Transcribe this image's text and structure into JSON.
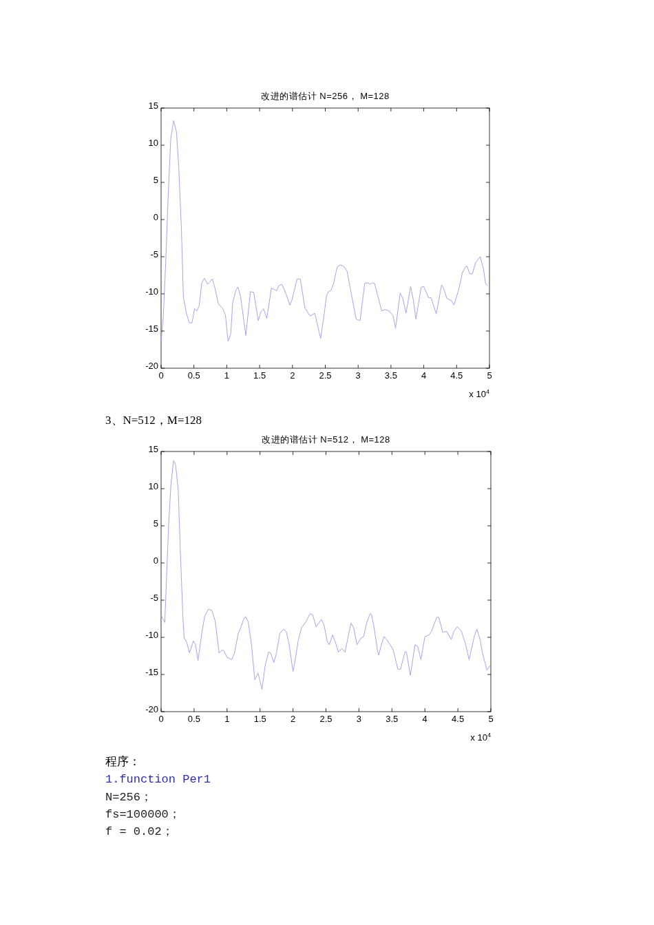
{
  "chart_data": [
    {
      "type": "line",
      "title": "改进的谱估计 N=256， M=128",
      "xlabel": "x 10$^{4}$",
      "xlim": [
        0,
        5
      ],
      "ylim": [
        -20,
        15
      ],
      "xticks": [
        0,
        0.5,
        1,
        1.5,
        2,
        2.5,
        3,
        3.5,
        4,
        4.5,
        5
      ],
      "yticks": [
        -20,
        -15,
        -10,
        -5,
        0,
        5,
        10,
        15
      ],
      "color": "#a6a6e6",
      "x": [
        0,
        0.035,
        0.07,
        0.105,
        0.147,
        0.19,
        0.234,
        0.27,
        0.31,
        0.34,
        0.385,
        0.43,
        0.47,
        0.51,
        0.545,
        0.58,
        0.62,
        0.66,
        0.71,
        0.78,
        0.82,
        0.87,
        0.94,
        0.98,
        1.02,
        1.06,
        1.09,
        1.14,
        1.17,
        1.21,
        1.29,
        1.36,
        1.41,
        1.48,
        1.52,
        1.56,
        1.61,
        1.68,
        1.76,
        1.79,
        1.84,
        1.91,
        1.96,
        1.99,
        2.07,
        2.12,
        2.19,
        2.27,
        2.34,
        2.43,
        2.48,
        2.52,
        2.55,
        2.59,
        2.63,
        2.68,
        2.73,
        2.78,
        2.83,
        2.89,
        2.97,
        3.03,
        3.1,
        3.14,
        3.18,
        3.22,
        3.25,
        3.31,
        3.36,
        3.41,
        3.47,
        3.53,
        3.57,
        3.64,
        3.68,
        3.73,
        3.8,
        3.84,
        3.88,
        3.96,
        4.0,
        4.07,
        4.11,
        4.19,
        4.27,
        4.3,
        4.35,
        4.42,
        4.46,
        4.53,
        4.59,
        4.64,
        4.66,
        4.7,
        4.74,
        4.79,
        4.86,
        4.91,
        4.94,
        4.97
      ],
      "values": [
        -16.5,
        -12.9,
        -5.8,
        2.5,
        10.9,
        13.3,
        11.8,
        6.9,
        -1.5,
        -10.5,
        -12.6,
        -13.9,
        -13.9,
        -12.0,
        -12.3,
        -11.6,
        -8.5,
        -7.9,
        -8.7,
        -8.0,
        -9.2,
        -11.3,
        -12.0,
        -12.9,
        -16.4,
        -15.4,
        -11.2,
        -9.5,
        -9.1,
        -10.3,
        -15.6,
        -9.7,
        -9.8,
        -13.6,
        -12.4,
        -12.0,
        -13.3,
        -9.2,
        -9.6,
        -8.9,
        -8.7,
        -10.2,
        -11.5,
        -10.9,
        -8.0,
        -8.0,
        -11.9,
        -13.0,
        -12.6,
        -16.0,
        -12.9,
        -10.2,
        -9.7,
        -9.5,
        -8.5,
        -6.4,
        -6.1,
        -6.3,
        -6.9,
        -9.7,
        -13.4,
        -13.6,
        -8.6,
        -8.5,
        -8.7,
        -8.5,
        -8.6,
        -10.6,
        -12.3,
        -12.1,
        -12.3,
        -12.9,
        -14.6,
        -9.9,
        -10.6,
        -12.6,
        -9.0,
        -10.8,
        -13.4,
        -9.1,
        -9.0,
        -10.5,
        -10.5,
        -12.7,
        -8.8,
        -9.2,
        -10.6,
        -10.9,
        -11.5,
        -9.5,
        -7.1,
        -6.3,
        -6.3,
        -7.3,
        -7.3,
        -5.8,
        -5.0,
        -6.7,
        -8.6,
        -8.9
      ]
    },
    {
      "type": "line",
      "title": "改进的谱估计 N=512， M=128",
      "xlabel": "x 10$^{4}$",
      "xlim": [
        0,
        5
      ],
      "ylim": [
        -20,
        15
      ],
      "xticks": [
        0,
        0.5,
        1,
        1.5,
        2,
        2.5,
        3,
        3.5,
        4,
        4.5,
        5
      ],
      "yticks": [
        -20,
        -15,
        -10,
        -5,
        0,
        5,
        10,
        15
      ],
      "color": "#a6a6e6",
      "annotations": [
        "3、N=512，M=128",
        "程序：",
        "1.function Per1",
        "N=256；",
        "fs=100000；",
        "f = 0.02；"
      ],
      "x": [
        0,
        0.056,
        0.084,
        0.115,
        0.15,
        0.19,
        0.22,
        0.26,
        0.29,
        0.33,
        0.35,
        0.39,
        0.43,
        0.49,
        0.52,
        0.56,
        0.62,
        0.66,
        0.72,
        0.77,
        0.82,
        0.88,
        0.93,
        0.95,
        1.0,
        1.07,
        1.11,
        1.17,
        1.21,
        1.25,
        1.28,
        1.32,
        1.37,
        1.42,
        1.47,
        1.53,
        1.58,
        1.63,
        1.66,
        1.71,
        1.75,
        1.8,
        1.86,
        1.9,
        1.94,
        2.0,
        2.04,
        2.08,
        2.13,
        2.19,
        2.26,
        2.3,
        2.35,
        2.43,
        2.47,
        2.52,
        2.55,
        2.6,
        2.64,
        2.69,
        2.74,
        2.79,
        2.85,
        2.88,
        2.92,
        2.97,
        3.03,
        3.07,
        3.12,
        3.17,
        3.19,
        3.23,
        3.28,
        3.3,
        3.34,
        3.38,
        3.43,
        3.48,
        3.52,
        3.59,
        3.63,
        3.7,
        3.72,
        3.78,
        3.85,
        3.89,
        3.94,
        4.0,
        4.06,
        4.1,
        4.18,
        4.21,
        4.27,
        4.33,
        4.4,
        4.44,
        4.49,
        4.55,
        4.61,
        4.67,
        4.75,
        4.79,
        4.84,
        4.87,
        4.94,
        4.99
      ],
      "values": [
        -7.0,
        -8.0,
        -1.6,
        5.2,
        10.7,
        13.8,
        13.2,
        9.8,
        2.1,
        -7.2,
        -10.1,
        -10.7,
        -12.1,
        -10.5,
        -10.9,
        -13.1,
        -9.3,
        -7.2,
        -6.2,
        -6.4,
        -7.8,
        -12.1,
        -11.7,
        -11.8,
        -12.7,
        -13.0,
        -12.2,
        -9.5,
        -8.7,
        -7.6,
        -7.2,
        -7.9,
        -10.9,
        -15.7,
        -14.8,
        -17.0,
        -13.7,
        -12.0,
        -12.1,
        -13.4,
        -12.1,
        -9.5,
        -8.9,
        -9.3,
        -10.9,
        -14.6,
        -12.7,
        -10.4,
        -8.7,
        -8.0,
        -6.8,
        -7.0,
        -8.6,
        -7.6,
        -8.3,
        -10.6,
        -11.0,
        -9.7,
        -10.6,
        -12.0,
        -11.5,
        -12.0,
        -9.3,
        -8.1,
        -8.7,
        -11.0,
        -10.1,
        -9.9,
        -8.0,
        -6.8,
        -6.9,
        -8.7,
        -11.7,
        -12.4,
        -11.0,
        -9.9,
        -10.4,
        -11.1,
        -11.7,
        -14.3,
        -14.3,
        -11.9,
        -12.0,
        -15.1,
        -11.0,
        -11.2,
        -13.0,
        -9.9,
        -9.7,
        -9.2,
        -7.3,
        -7.3,
        -9.3,
        -9.2,
        -10.3,
        -9.2,
        -8.6,
        -9.1,
        -10.7,
        -13.0,
        -9.8,
        -8.9,
        -10.4,
        -12.0,
        -14.4,
        -13.8
      ]
    }
  ]
}
